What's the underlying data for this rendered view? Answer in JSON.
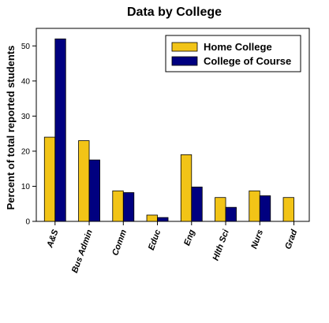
{
  "chart_data": {
    "type": "bar",
    "title": "Data by College",
    "xlabel": "",
    "ylabel": "Percent of total reported students",
    "categories": [
      "A&S",
      "Bus Admin",
      "Comm",
      "Educ",
      "Eng",
      "Hlth Sci",
      "Nurs",
      "Grad"
    ],
    "series": [
      {
        "name": "Home College",
        "color": "#f2c417",
        "values": [
          24,
          23,
          8.7,
          1.8,
          19,
          6.8,
          8.7,
          6.8
        ]
      },
      {
        "name": "College of Course",
        "color": "#000080",
        "values": [
          52,
          17.5,
          8.2,
          1.1,
          9.8,
          4,
          7.3,
          null
        ]
      }
    ],
    "ylim": [
      0,
      55
    ],
    "yticks": [
      0,
      10,
      20,
      30,
      40,
      50
    ],
    "grid": false,
    "legend_position": "top-right"
  }
}
